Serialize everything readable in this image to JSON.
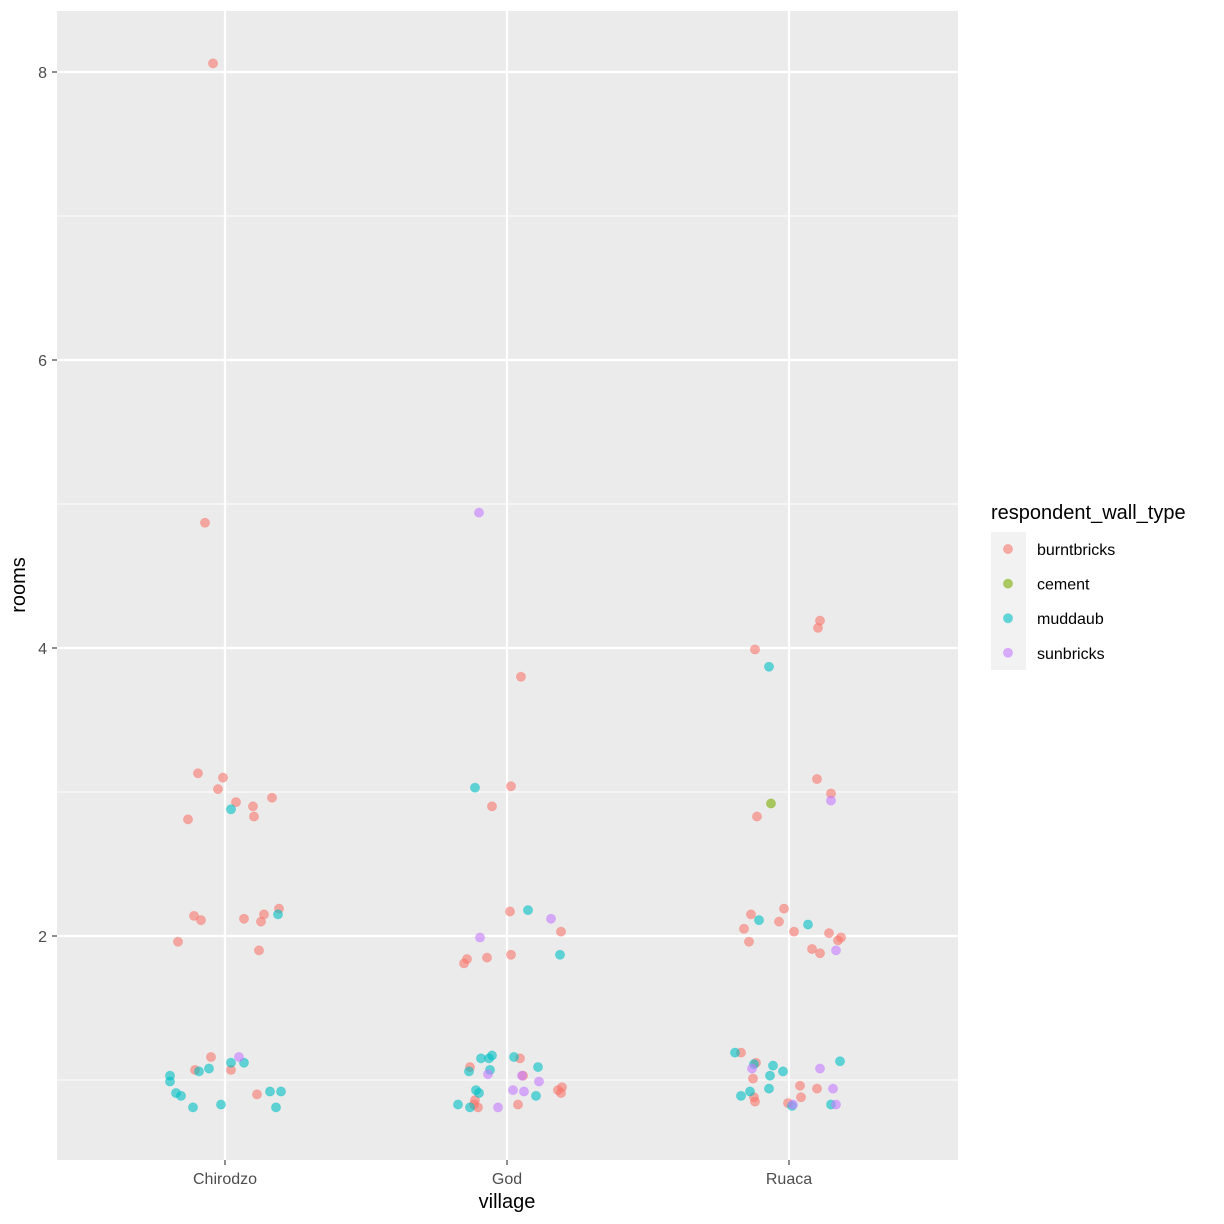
{
  "chart_data": {
    "type": "scatter",
    "title": "",
    "xlabel": "village",
    "ylabel": "rooms",
    "categories": [
      "Chirodzo",
      "God",
      "Ruaca"
    ],
    "ylim": [
      0.6,
      8.3
    ],
    "yticks": [
      2,
      4,
      6,
      8
    ],
    "y_minor_gridlines": [
      1,
      3,
      5,
      7
    ],
    "grid": true,
    "jitter": true,
    "legend": {
      "title": "respondent_wall_type",
      "position": "right",
      "entries": [
        {
          "label": "burntbricks",
          "color": "#F8766D"
        },
        {
          "label": "cement",
          "color": "#7CAE00"
        },
        {
          "label": "muddaub",
          "color": "#00BFC4"
        },
        {
          "label": "sunbricks",
          "color": "#C77CFF"
        }
      ]
    },
    "series": [
      {
        "name": "burntbricks",
        "color": "#F8766D",
        "points": [
          {
            "village": "Chirodzo",
            "dx": -12,
            "rooms": 8.06
          },
          {
            "village": "Chirodzo",
            "dx": -20,
            "rooms": 4.87
          },
          {
            "village": "Chirodzo",
            "dx": -27,
            "rooms": 3.13
          },
          {
            "village": "Chirodzo",
            "dx": -2,
            "rooms": 3.1
          },
          {
            "village": "Chirodzo",
            "dx": -7,
            "rooms": 3.02
          },
          {
            "village": "Chirodzo",
            "dx": 11,
            "rooms": 2.93
          },
          {
            "village": "Chirodzo",
            "dx": 28,
            "rooms": 2.9
          },
          {
            "village": "Chirodzo",
            "dx": 47,
            "rooms": 2.96
          },
          {
            "village": "Chirodzo",
            "dx": -37,
            "rooms": 2.81
          },
          {
            "village": "Chirodzo",
            "dx": 29,
            "rooms": 2.83
          },
          {
            "village": "Chirodzo",
            "dx": -31,
            "rooms": 2.14
          },
          {
            "village": "Chirodzo",
            "dx": -24,
            "rooms": 2.11
          },
          {
            "village": "Chirodzo",
            "dx": 19,
            "rooms": 2.12
          },
          {
            "village": "Chirodzo",
            "dx": 39,
            "rooms": 2.15
          },
          {
            "village": "Chirodzo",
            "dx": 36,
            "rooms": 2.1
          },
          {
            "village": "Chirodzo",
            "dx": 54,
            "rooms": 2.19
          },
          {
            "village": "Chirodzo",
            "dx": -47,
            "rooms": 1.96
          },
          {
            "village": "Chirodzo",
            "dx": 34,
            "rooms": 1.9
          },
          {
            "village": "Chirodzo",
            "dx": -14,
            "rooms": 1.16
          },
          {
            "village": "Chirodzo",
            "dx": -30,
            "rooms": 1.07
          },
          {
            "village": "Chirodzo",
            "dx": 6,
            "rooms": 1.07
          },
          {
            "village": "Chirodzo",
            "dx": 32,
            "rooms": 0.9
          },
          {
            "village": "God",
            "dx": 14,
            "rooms": 3.8
          },
          {
            "village": "God",
            "dx": 4,
            "rooms": 3.04
          },
          {
            "village": "God",
            "dx": -15,
            "rooms": 2.9
          },
          {
            "village": "God",
            "dx": 3,
            "rooms": 2.17
          },
          {
            "village": "God",
            "dx": 54,
            "rooms": 2.03
          },
          {
            "village": "God",
            "dx": -40,
            "rooms": 1.84
          },
          {
            "village": "God",
            "dx": -43,
            "rooms": 1.81
          },
          {
            "village": "God",
            "dx": -20,
            "rooms": 1.85
          },
          {
            "village": "God",
            "dx": 4,
            "rooms": 1.87
          },
          {
            "village": "God",
            "dx": -37,
            "rooms": 1.09
          },
          {
            "village": "God",
            "dx": -32,
            "rooms": 0.86
          },
          {
            "village": "God",
            "dx": -33,
            "rooms": 0.83
          },
          {
            "village": "God",
            "dx": -29,
            "rooms": 0.81
          },
          {
            "village": "God",
            "dx": 13,
            "rooms": 1.15
          },
          {
            "village": "God",
            "dx": 16,
            "rooms": 1.03
          },
          {
            "village": "God",
            "dx": 51,
            "rooms": 0.93
          },
          {
            "village": "God",
            "dx": 55,
            "rooms": 0.95
          },
          {
            "village": "God",
            "dx": 54,
            "rooms": 0.91
          },
          {
            "village": "God",
            "dx": 11,
            "rooms": 0.83
          },
          {
            "village": "Ruaca",
            "dx": 31,
            "rooms": 4.19
          },
          {
            "village": "Ruaca",
            "dx": 29,
            "rooms": 4.14
          },
          {
            "village": "Ruaca",
            "dx": -34,
            "rooms": 3.99
          },
          {
            "village": "Ruaca",
            "dx": 28,
            "rooms": 3.09
          },
          {
            "village": "Ruaca",
            "dx": 42,
            "rooms": 2.99
          },
          {
            "village": "Ruaca",
            "dx": -32,
            "rooms": 2.83
          },
          {
            "village": "Ruaca",
            "dx": -38,
            "rooms": 2.15
          },
          {
            "village": "Ruaca",
            "dx": -5,
            "rooms": 2.19
          },
          {
            "village": "Ruaca",
            "dx": -45,
            "rooms": 2.05
          },
          {
            "village": "Ruaca",
            "dx": -10,
            "rooms": 2.1
          },
          {
            "village": "Ruaca",
            "dx": 5,
            "rooms": 2.03
          },
          {
            "village": "Ruaca",
            "dx": 40,
            "rooms": 2.02
          },
          {
            "village": "Ruaca",
            "dx": 52,
            "rooms": 1.99
          },
          {
            "village": "Ruaca",
            "dx": 49,
            "rooms": 1.97
          },
          {
            "village": "Ruaca",
            "dx": -40,
            "rooms": 1.96
          },
          {
            "village": "Ruaca",
            "dx": 23,
            "rooms": 1.91
          },
          {
            "village": "Ruaca",
            "dx": 31,
            "rooms": 1.88
          },
          {
            "village": "Ruaca",
            "dx": -48,
            "rooms": 1.19
          },
          {
            "village": "Ruaca",
            "dx": -33,
            "rooms": 1.12
          },
          {
            "village": "Ruaca",
            "dx": -36,
            "rooms": 1.01
          },
          {
            "village": "Ruaca",
            "dx": -35,
            "rooms": 0.88
          },
          {
            "village": "Ruaca",
            "dx": -34,
            "rooms": 0.85
          },
          {
            "village": "Ruaca",
            "dx": 11,
            "rooms": 0.96
          },
          {
            "village": "Ruaca",
            "dx": 12,
            "rooms": 0.88
          },
          {
            "village": "Ruaca",
            "dx": 28,
            "rooms": 0.94
          },
          {
            "village": "Ruaca",
            "dx": -1,
            "rooms": 0.84
          }
        ]
      },
      {
        "name": "cement",
        "color": "#7CAE00",
        "points": [
          {
            "village": "Ruaca",
            "dx": -18,
            "rooms": 2.92
          }
        ]
      },
      {
        "name": "muddaub",
        "color": "#00BFC4",
        "points": [
          {
            "village": "Chirodzo",
            "dx": 6,
            "rooms": 2.88
          },
          {
            "village": "Chirodzo",
            "dx": 53,
            "rooms": 2.15
          },
          {
            "village": "Chirodzo",
            "dx": -55,
            "rooms": 1.03
          },
          {
            "village": "Chirodzo",
            "dx": -55,
            "rooms": 0.99
          },
          {
            "village": "Chirodzo",
            "dx": -26,
            "rooms": 1.06
          },
          {
            "village": "Chirodzo",
            "dx": -16,
            "rooms": 1.08
          },
          {
            "village": "Chirodzo",
            "dx": 6,
            "rooms": 1.12
          },
          {
            "village": "Chirodzo",
            "dx": 19,
            "rooms": 1.12
          },
          {
            "village": "Chirodzo",
            "dx": -49,
            "rooms": 0.91
          },
          {
            "village": "Chirodzo",
            "dx": -44,
            "rooms": 0.89
          },
          {
            "village": "Chirodzo",
            "dx": -32,
            "rooms": 0.81
          },
          {
            "village": "Chirodzo",
            "dx": -4,
            "rooms": 0.83
          },
          {
            "village": "Chirodzo",
            "dx": 45,
            "rooms": 0.92
          },
          {
            "village": "Chirodzo",
            "dx": 56,
            "rooms": 0.92
          },
          {
            "village": "Chirodzo",
            "dx": 51,
            "rooms": 0.81
          },
          {
            "village": "God",
            "dx": -32,
            "rooms": 3.03
          },
          {
            "village": "God",
            "dx": 21,
            "rooms": 2.18
          },
          {
            "village": "God",
            "dx": 53,
            "rooms": 1.87
          },
          {
            "village": "God",
            "dx": -38,
            "rooms": 1.06
          },
          {
            "village": "God",
            "dx": -26,
            "rooms": 1.15
          },
          {
            "village": "God",
            "dx": -18,
            "rooms": 1.15
          },
          {
            "village": "God",
            "dx": -15,
            "rooms": 1.17
          },
          {
            "village": "God",
            "dx": -17,
            "rooms": 1.07
          },
          {
            "village": "God",
            "dx": 7,
            "rooms": 1.16
          },
          {
            "village": "God",
            "dx": 31,
            "rooms": 1.09
          },
          {
            "village": "God",
            "dx": -31,
            "rooms": 0.93
          },
          {
            "village": "God",
            "dx": -28,
            "rooms": 0.91
          },
          {
            "village": "God",
            "dx": -49,
            "rooms": 0.83
          },
          {
            "village": "God",
            "dx": -37,
            "rooms": 0.81
          },
          {
            "village": "God",
            "dx": 29,
            "rooms": 0.89
          },
          {
            "village": "Ruaca",
            "dx": -20,
            "rooms": 3.87
          },
          {
            "village": "Ruaca",
            "dx": -30,
            "rooms": 2.11
          },
          {
            "village": "Ruaca",
            "dx": 19,
            "rooms": 2.08
          },
          {
            "village": "Ruaca",
            "dx": -54,
            "rooms": 1.19
          },
          {
            "village": "Ruaca",
            "dx": -35,
            "rooms": 1.11
          },
          {
            "village": "Ruaca",
            "dx": -16,
            "rooms": 1.1
          },
          {
            "village": "Ruaca",
            "dx": -19,
            "rooms": 1.03
          },
          {
            "village": "Ruaca",
            "dx": -6,
            "rooms": 1.06
          },
          {
            "village": "Ruaca",
            "dx": 51,
            "rooms": 1.13
          },
          {
            "village": "Ruaca",
            "dx": -48,
            "rooms": 0.89
          },
          {
            "village": "Ruaca",
            "dx": -39,
            "rooms": 0.92
          },
          {
            "village": "Ruaca",
            "dx": -20,
            "rooms": 0.94
          },
          {
            "village": "Ruaca",
            "dx": 3,
            "rooms": 0.82
          },
          {
            "village": "Ruaca",
            "dx": 42,
            "rooms": 0.83
          }
        ]
      },
      {
        "name": "sunbricks",
        "color": "#C77CFF",
        "points": [
          {
            "village": "Chirodzo",
            "dx": 14,
            "rooms": 1.16
          },
          {
            "village": "God",
            "dx": -28,
            "rooms": 4.94
          },
          {
            "village": "God",
            "dx": -27,
            "rooms": 1.99
          },
          {
            "village": "God",
            "dx": 44,
            "rooms": 2.12
          },
          {
            "village": "God",
            "dx": -19,
            "rooms": 1.04
          },
          {
            "village": "God",
            "dx": 15,
            "rooms": 1.03
          },
          {
            "village": "God",
            "dx": 6,
            "rooms": 0.93
          },
          {
            "village": "God",
            "dx": 17,
            "rooms": 0.92
          },
          {
            "village": "God",
            "dx": 32,
            "rooms": 0.99
          },
          {
            "village": "God",
            "dx": -9,
            "rooms": 0.81
          },
          {
            "village": "Ruaca",
            "dx": 47,
            "rooms": 1.9
          },
          {
            "village": "Ruaca",
            "dx": 42,
            "rooms": 2.94
          },
          {
            "village": "Ruaca",
            "dx": -37,
            "rooms": 1.08
          },
          {
            "village": "Ruaca",
            "dx": 31,
            "rooms": 1.08
          },
          {
            "village": "Ruaca",
            "dx": 44,
            "rooms": 0.94
          },
          {
            "village": "Ruaca",
            "dx": 47,
            "rooms": 0.83
          },
          {
            "village": "Ruaca",
            "dx": 4,
            "rooms": 0.83
          }
        ]
      }
    ]
  },
  "style": {
    "panel_background": "#EBEBEB",
    "grid_major": "#FFFFFF",
    "legend_key_background": "#F2F2F2",
    "tick_color": "#333333",
    "point_alpha": 0.6
  }
}
